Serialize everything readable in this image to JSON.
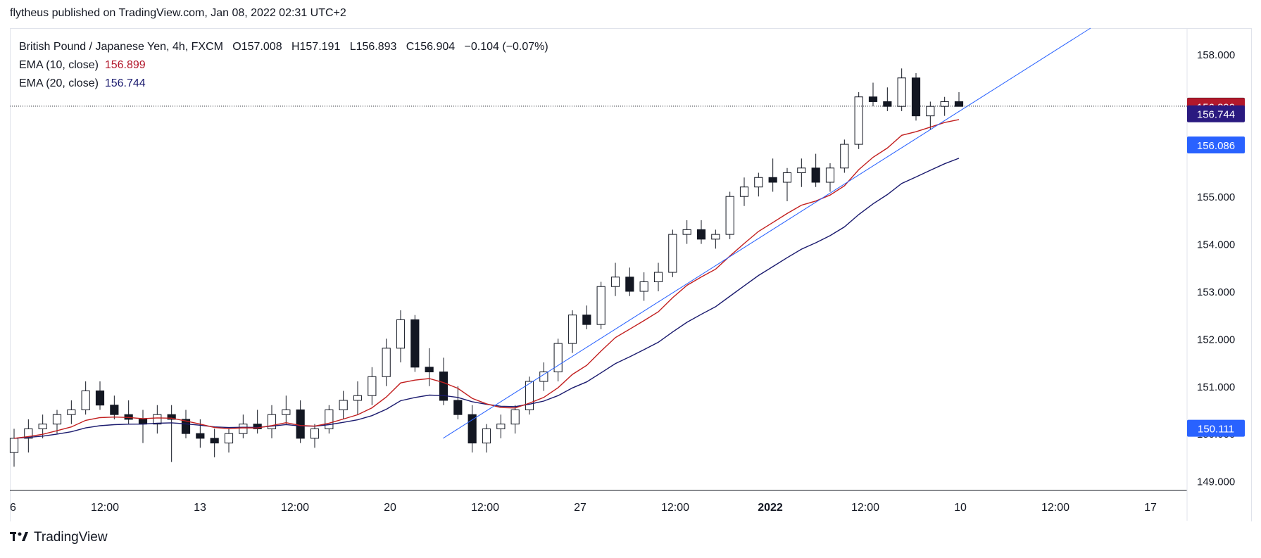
{
  "publish_line": "flytheus published on TradingView.com, Jan 08, 2022 02:31 UTC+2",
  "legend": {
    "symbol": "British Pound / Japanese Yen, 4h, FXCM",
    "open_label": "O",
    "open": "157.008",
    "high_label": "H",
    "high": "157.191",
    "low_label": "L",
    "low": "156.893",
    "close_label": "C",
    "close": "156.904",
    "change": "−0.104 (−0.07%)",
    "ema10_label": "EMA (10, close)",
    "ema10_value": "156.899",
    "ema20_label": "EMA (20, close)",
    "ema20_value": "156.744"
  },
  "footer": {
    "logo_text": "TradingView"
  },
  "colors": {
    "ema10": "#c21f1f",
    "ema20": "#1a1a6e",
    "trendline": "#2962ff",
    "price_tag": "#131722",
    "up_body": "#ffffff",
    "down_body": "#131722"
  },
  "chart_data": {
    "type": "candlestick",
    "ylim": [
      148.8,
      158.55
    ],
    "y_ticks": [
      "149.000",
      "150.000",
      "151.000",
      "152.000",
      "153.000",
      "154.000",
      "155.000",
      "156.000",
      "157.000",
      "158.000"
    ],
    "x_ticks": [
      "6",
      "12:00",
      "13",
      "12:00",
      "20",
      "12:00",
      "27",
      "12:00",
      "2022",
      "12:00",
      "10",
      "12:00",
      "17"
    ],
    "price_labels": [
      {
        "value": "156.904",
        "color": "#131722"
      },
      {
        "value": "156.899",
        "color": "#b2182b"
      },
      {
        "value": "156.744",
        "color": "#2a1a80"
      },
      {
        "value": "156.086",
        "color": "#2962ff"
      },
      {
        "value": "150.111",
        "color": "#2962ff"
      }
    ],
    "last_price": 156.904,
    "candles_ohlc": [
      [
        149.6,
        150.1,
        149.3,
        149.9
      ],
      [
        149.9,
        150.3,
        149.6,
        150.1
      ],
      [
        150.1,
        150.4,
        149.9,
        150.2
      ],
      [
        150.2,
        150.5,
        150.0,
        150.4
      ],
      [
        150.4,
        150.7,
        150.2,
        150.5
      ],
      [
        150.5,
        151.1,
        150.4,
        150.9
      ],
      [
        150.9,
        151.1,
        150.5,
        150.6
      ],
      [
        150.6,
        150.8,
        150.3,
        150.4
      ],
      [
        150.4,
        150.7,
        150.2,
        150.3
      ],
      [
        150.3,
        150.5,
        149.8,
        150.2
      ],
      [
        150.2,
        150.6,
        150.0,
        150.4
      ],
      [
        150.4,
        150.6,
        149.4,
        150.3
      ],
      [
        150.3,
        150.5,
        149.9,
        150.0
      ],
      [
        150.0,
        150.3,
        149.7,
        149.9
      ],
      [
        149.9,
        150.1,
        149.5,
        149.8
      ],
      [
        149.8,
        150.1,
        149.6,
        150.0
      ],
      [
        150.0,
        150.4,
        149.9,
        150.2
      ],
      [
        150.2,
        150.5,
        150.0,
        150.1
      ],
      [
        150.1,
        150.6,
        149.9,
        150.4
      ],
      [
        150.4,
        150.8,
        150.2,
        150.5
      ],
      [
        150.5,
        150.7,
        149.8,
        149.9
      ],
      [
        149.9,
        150.2,
        149.7,
        150.1
      ],
      [
        150.1,
        150.6,
        150.0,
        150.5
      ],
      [
        150.5,
        150.9,
        150.3,
        150.7
      ],
      [
        150.7,
        151.1,
        150.4,
        150.8
      ],
      [
        150.8,
        151.4,
        150.6,
        151.2
      ],
      [
        151.2,
        152.0,
        151.0,
        151.8
      ],
      [
        151.8,
        152.6,
        151.5,
        152.4
      ],
      [
        152.4,
        152.5,
        151.3,
        151.4
      ],
      [
        151.4,
        151.8,
        151.0,
        151.3
      ],
      [
        151.3,
        151.6,
        150.6,
        150.7
      ],
      [
        150.7,
        151.0,
        150.3,
        150.4
      ],
      [
        150.4,
        150.6,
        149.6,
        149.8
      ],
      [
        149.8,
        150.2,
        149.6,
        150.1
      ],
      [
        150.1,
        150.4,
        149.9,
        150.2
      ],
      [
        150.2,
        150.6,
        150.0,
        150.5
      ],
      [
        150.5,
        151.2,
        150.4,
        151.1
      ],
      [
        151.1,
        151.5,
        150.9,
        151.3
      ],
      [
        151.3,
        152.0,
        151.1,
        151.9
      ],
      [
        151.9,
        152.6,
        151.7,
        152.5
      ],
      [
        152.5,
        152.7,
        152.2,
        152.3
      ],
      [
        152.3,
        153.2,
        152.2,
        153.1
      ],
      [
        153.1,
        153.6,
        152.9,
        153.3
      ],
      [
        153.3,
        153.5,
        152.9,
        153.0
      ],
      [
        153.0,
        153.4,
        152.8,
        153.2
      ],
      [
        153.2,
        153.6,
        153.0,
        153.4
      ],
      [
        153.4,
        154.3,
        153.3,
        154.2
      ],
      [
        154.2,
        154.5,
        154.0,
        154.3
      ],
      [
        154.3,
        154.5,
        154.0,
        154.1
      ],
      [
        154.1,
        154.3,
        153.9,
        154.2
      ],
      [
        154.2,
        155.1,
        154.1,
        155.0
      ],
      [
        155.0,
        155.4,
        154.8,
        155.2
      ],
      [
        155.2,
        155.5,
        155.0,
        155.4
      ],
      [
        155.4,
        155.8,
        155.1,
        155.3
      ],
      [
        155.3,
        155.6,
        154.9,
        155.5
      ],
      [
        155.5,
        155.8,
        155.2,
        155.6
      ],
      [
        155.6,
        155.9,
        155.2,
        155.3
      ],
      [
        155.3,
        155.7,
        155.1,
        155.6
      ],
      [
        155.6,
        156.2,
        155.5,
        156.1
      ],
      [
        156.1,
        157.2,
        156.0,
        157.1
      ],
      [
        157.1,
        157.4,
        156.9,
        157.0
      ],
      [
        157.0,
        157.3,
        156.8,
        156.9
      ],
      [
        156.9,
        157.7,
        156.8,
        157.5
      ],
      [
        157.5,
        157.6,
        156.6,
        156.7
      ],
      [
        156.7,
        157.0,
        156.4,
        156.9
      ],
      [
        156.9,
        157.1,
        156.7,
        157.0
      ],
      [
        157.0,
        157.2,
        156.9,
        156.9
      ]
    ],
    "trendline": [
      [
        149.9,
        0.368
      ],
      [
        158.55,
        0.918
      ]
    ]
  }
}
